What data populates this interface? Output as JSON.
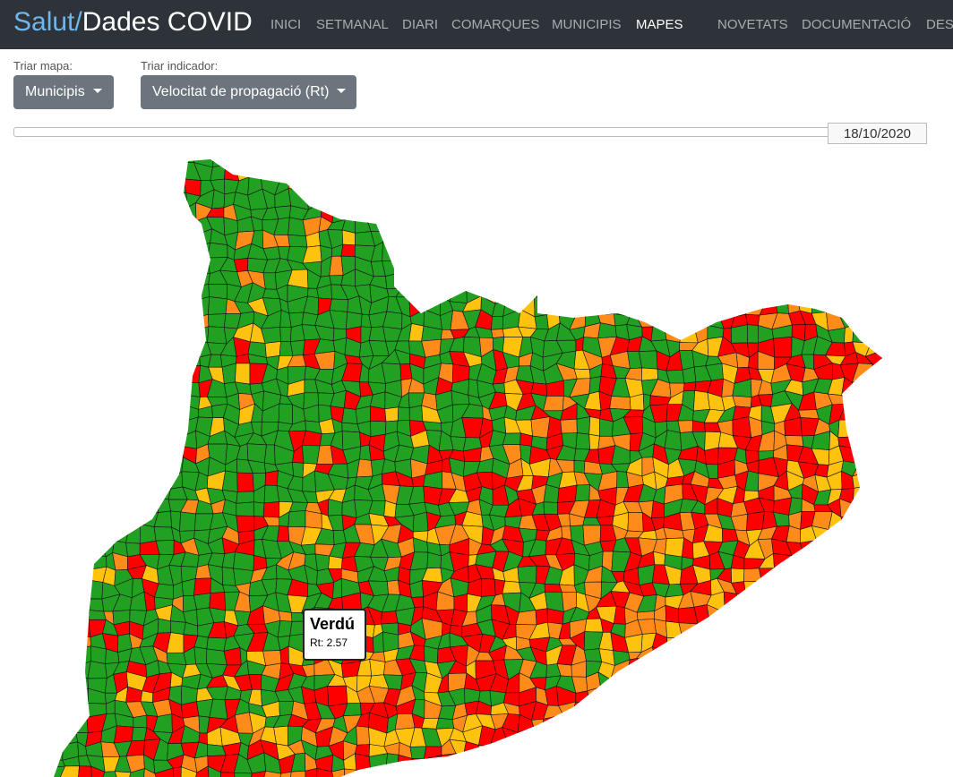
{
  "navbar": {
    "brand_prefix": "Salut/",
    "brand": "Dades COVID",
    "items": [
      "INICI",
      "SETMANAL",
      "DIARI",
      "COMARQUES",
      "MUNICIPIS",
      "MAPES",
      "NOVETATS",
      "DOCUMENTACIÓ",
      "DESC"
    ],
    "active": "MAPES"
  },
  "controls": {
    "map_label": "Triar mapa:",
    "map_button": "Municipis",
    "indicator_label": "Triar indicador:",
    "indicator_button": "Velocitat de propagació (Rt)",
    "date": "18/10/2020"
  },
  "tooltip": {
    "title": "Verdú",
    "text": "Rt: 2.57"
  }
}
